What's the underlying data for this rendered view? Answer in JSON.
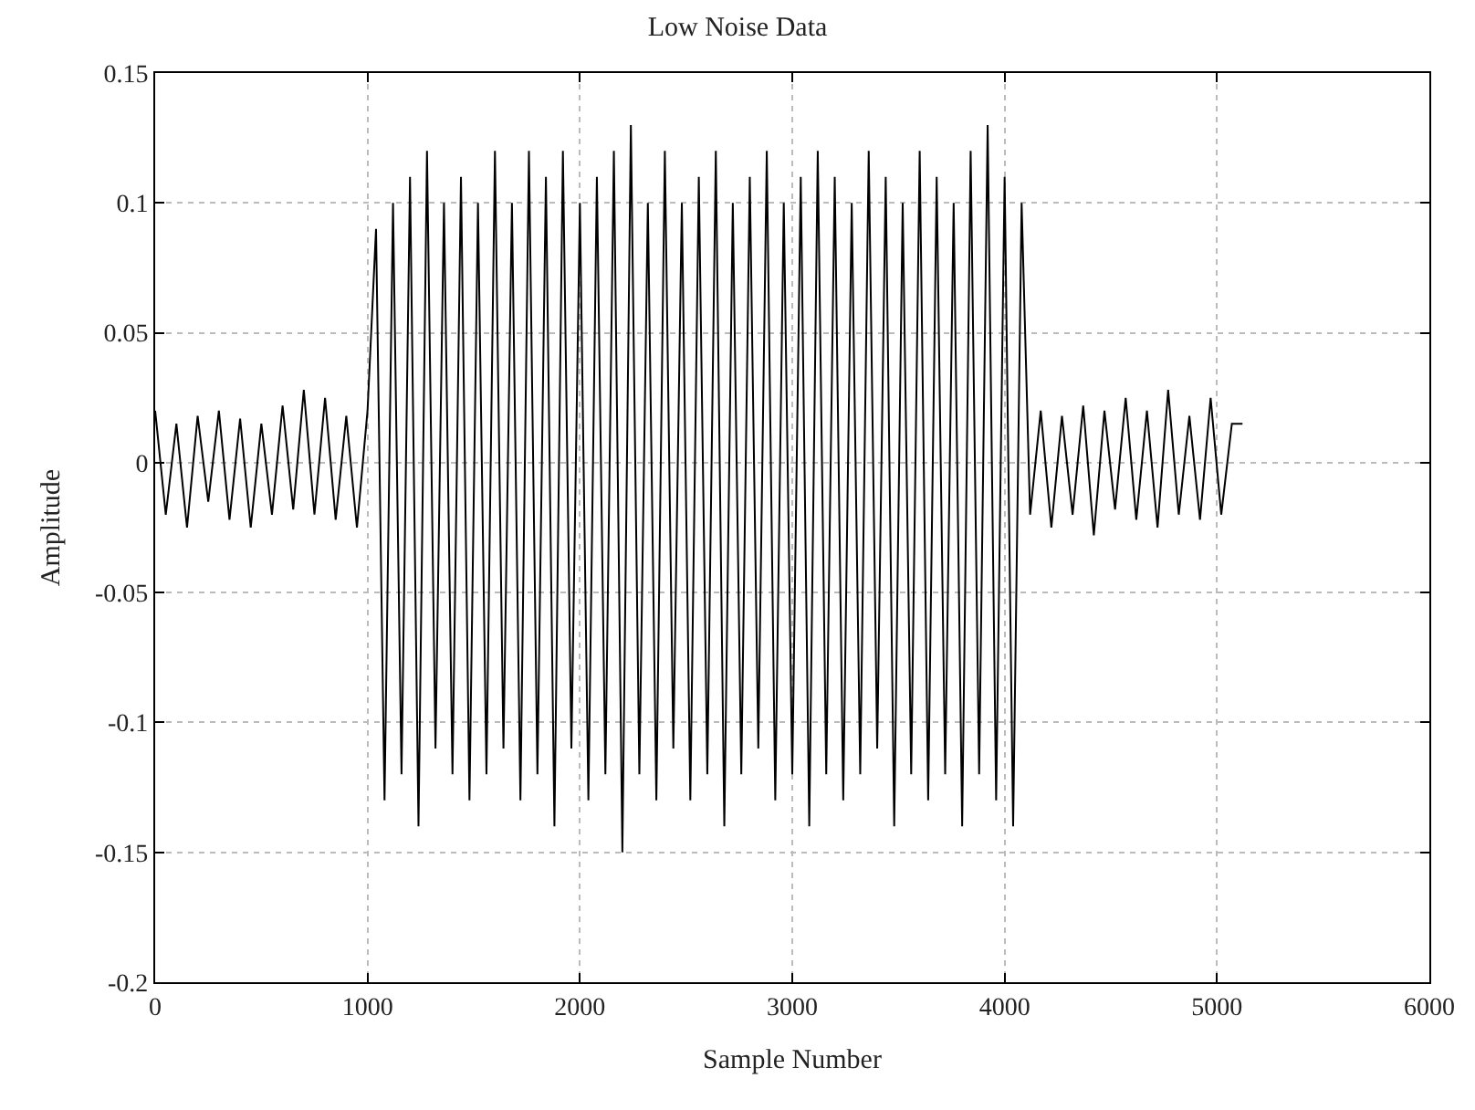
{
  "chart_data": {
    "type": "line",
    "title": "Low Noise Data",
    "xlabel": "Sample Number",
    "ylabel": "Amplitude",
    "xlim": [
      0,
      6000
    ],
    "xticks": [
      0,
      1000,
      2000,
      3000,
      4000,
      5000,
      6000
    ],
    "ylim": [
      -0.2,
      0.15
    ],
    "yticks": [
      -0.2,
      -0.15,
      -0.1,
      -0.05,
      0,
      0.05,
      0.1,
      0.15
    ],
    "grid": true,
    "marker": "none",
    "line_style": "solid",
    "series": [
      {
        "color": "#000000",
        "x": [
          0,
          50,
          100,
          150,
          200,
          250,
          300,
          350,
          400,
          450,
          500,
          550,
          600,
          650,
          700,
          750,
          800,
          850,
          900,
          950,
          1000,
          1040,
          1080,
          1120,
          1160,
          1200,
          1240,
          1280,
          1320,
          1360,
          1400,
          1440,
          1480,
          1520,
          1560,
          1600,
          1640,
          1680,
          1720,
          1760,
          1800,
          1840,
          1880,
          1920,
          1960,
          2000,
          2040,
          2080,
          2120,
          2160,
          2200,
          2240,
          2280,
          2320,
          2360,
          2400,
          2440,
          2480,
          2520,
          2560,
          2600,
          2640,
          2680,
          2720,
          2760,
          2800,
          2840,
          2880,
          2920,
          2960,
          3000,
          3040,
          3080,
          3120,
          3160,
          3200,
          3240,
          3280,
          3320,
          3360,
          3400,
          3440,
          3480,
          3520,
          3560,
          3600,
          3640,
          3680,
          3720,
          3760,
          3800,
          3840,
          3880,
          3920,
          3960,
          4000,
          4040,
          4080,
          4120,
          4170,
          4220,
          4270,
          4320,
          4370,
          4420,
          4470,
          4520,
          4570,
          4620,
          4670,
          4720,
          4770,
          4820,
          4870,
          4920,
          4970,
          5020,
          5070,
          5120
        ],
        "values": [
          0.02,
          -0.02,
          0.015,
          -0.025,
          0.018,
          -0.015,
          0.02,
          -0.022,
          0.017,
          -0.025,
          0.015,
          -0.02,
          0.022,
          -0.018,
          0.028,
          -0.02,
          0.025,
          -0.022,
          0.018,
          -0.025,
          0.02,
          0.09,
          -0.13,
          0.1,
          -0.12,
          0.11,
          -0.14,
          0.12,
          -0.11,
          0.1,
          -0.12,
          0.11,
          -0.13,
          0.1,
          -0.12,
          0.12,
          -0.11,
          0.1,
          -0.13,
          0.12,
          -0.12,
          0.11,
          -0.14,
          0.12,
          -0.11,
          0.1,
          -0.13,
          0.11,
          -0.12,
          0.12,
          -0.15,
          0.13,
          -0.12,
          0.1,
          -0.13,
          0.12,
          -0.11,
          0.1,
          -0.13,
          0.11,
          -0.12,
          0.12,
          -0.14,
          0.1,
          -0.12,
          0.11,
          -0.11,
          0.12,
          -0.13,
          0.1,
          -0.12,
          0.11,
          -0.14,
          0.12,
          -0.12,
          0.11,
          -0.13,
          0.1,
          -0.12,
          0.12,
          -0.11,
          0.11,
          -0.14,
          0.1,
          -0.12,
          0.12,
          -0.13,
          0.11,
          -0.12,
          0.1,
          -0.14,
          0.12,
          -0.12,
          0.13,
          -0.13,
          0.11,
          -0.14,
          0.1,
          -0.02,
          0.02,
          -0.025,
          0.018,
          -0.02,
          0.022,
          -0.028,
          0.02,
          -0.018,
          0.025,
          -0.022,
          0.02,
          -0.025,
          0.028,
          -0.02,
          0.018,
          -0.022,
          0.025,
          -0.02,
          0.015,
          0.015
        ]
      }
    ]
  }
}
